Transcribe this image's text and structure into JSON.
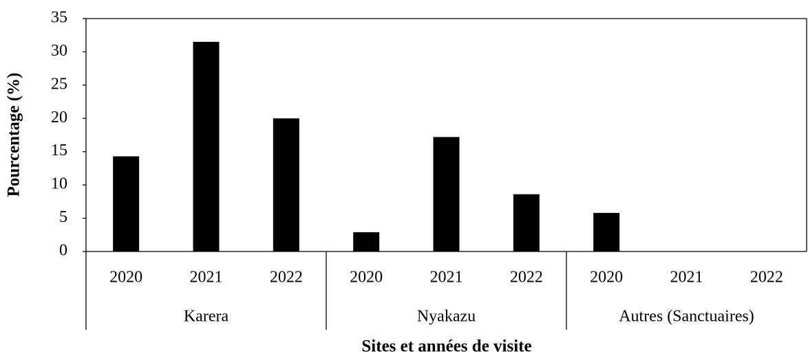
{
  "chart_data": {
    "type": "bar",
    "categories": [
      "2020",
      "2021",
      "2022",
      "2020",
      "2021",
      "2022",
      "2020",
      "2021",
      "2022"
    ],
    "groups": [
      "Karera",
      "Nyakazu",
      "Autres (Sanctuaires)"
    ],
    "values": [
      14.3,
      31.5,
      20,
      2.9,
      17.2,
      8.6,
      5.8,
      0,
      0
    ],
    "color": "#000000",
    "ylabel": "Pourcentage (%)",
    "xlabel": "Sites et années de visite",
    "ylim": [
      0,
      35
    ],
    "yticks": [
      0,
      5,
      10,
      15,
      20,
      25,
      30,
      35
    ],
    "grid": false
  }
}
